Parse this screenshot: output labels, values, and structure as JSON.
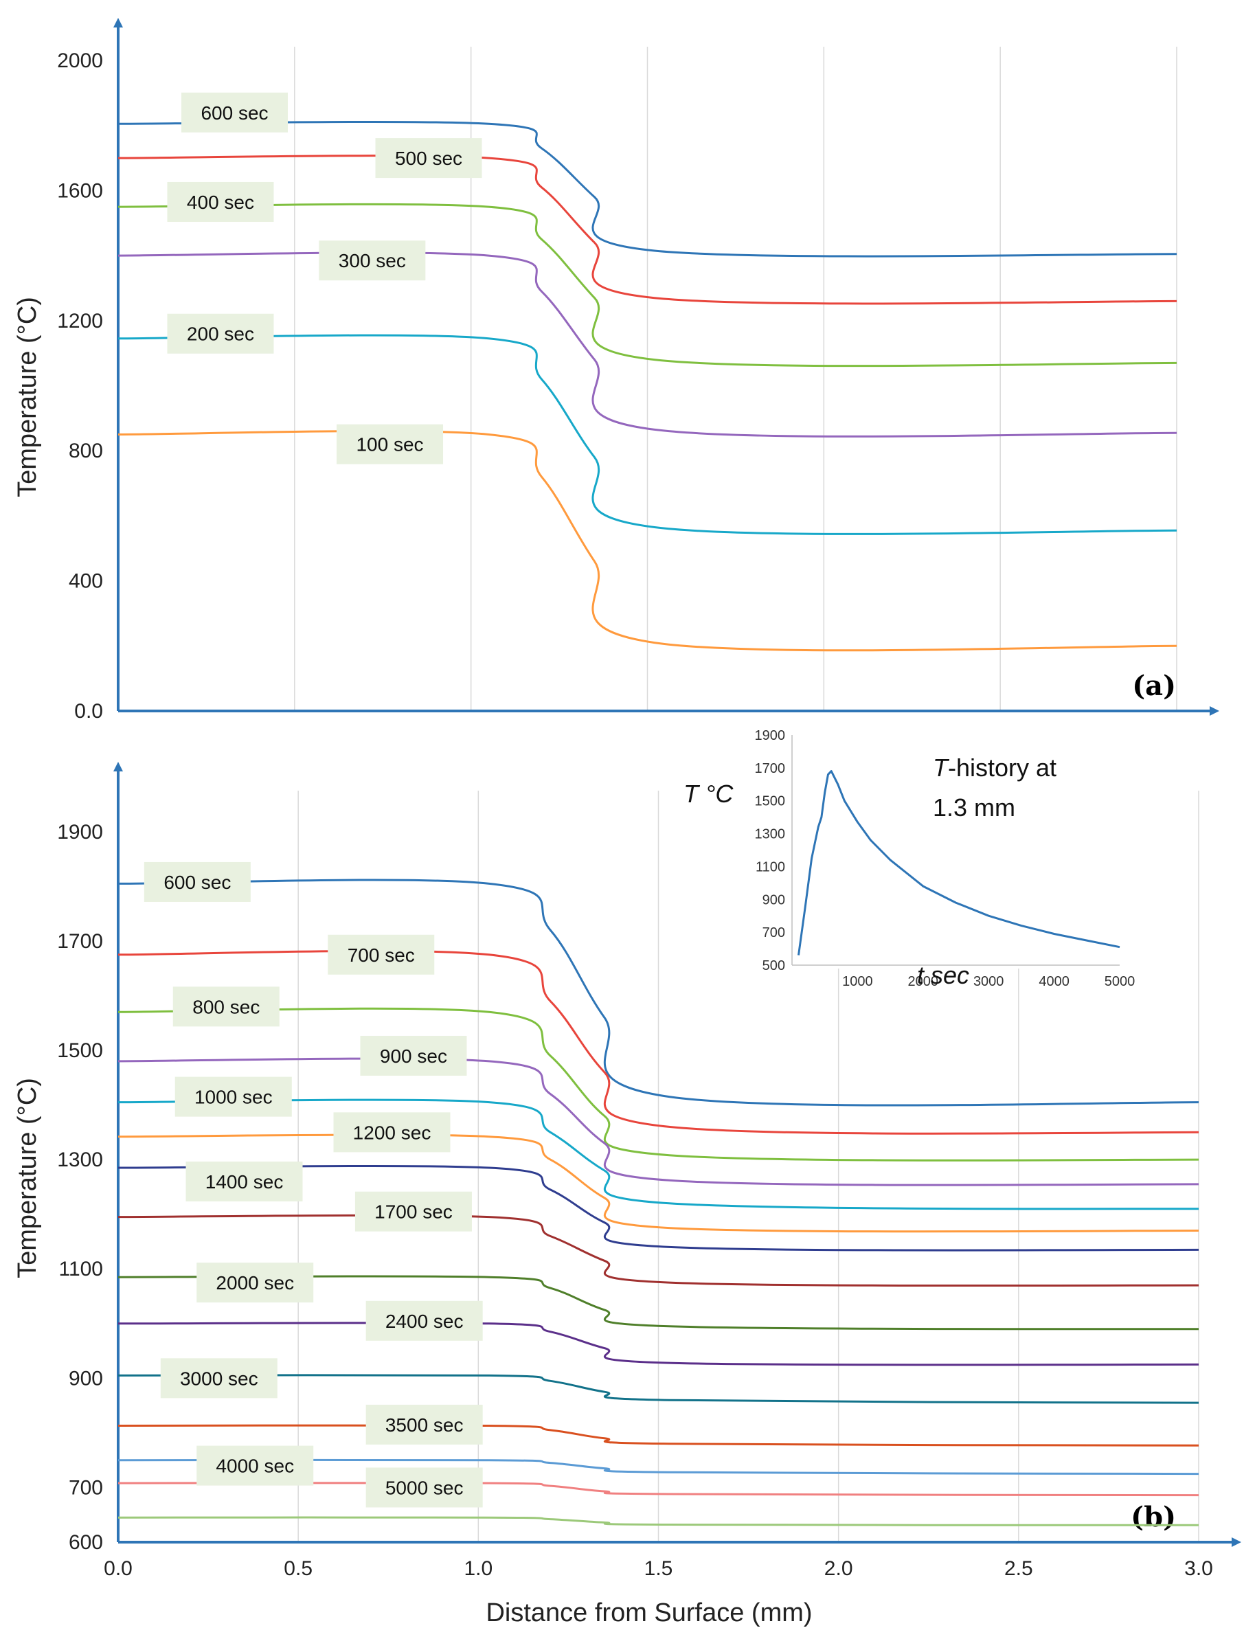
{
  "chart_data": [
    {
      "type": "line",
      "panel_label": "(a)",
      "ylabel": "Temperature (°C)",
      "xlabel": "",
      "xlim": [
        0,
        3.0
      ],
      "ylim": [
        0,
        2000
      ],
      "y_ticks": [
        "0.0",
        "400",
        "800",
        "1200",
        "1600",
        "2000"
      ],
      "y_tick_values": [
        0,
        400,
        800,
        1200,
        1600,
        2000
      ],
      "grid": "vertical",
      "series": [
        {
          "name": "600 sec",
          "color": "#2e75b6",
          "x": [
            0,
            1.05,
            1.2,
            1.35,
            1.52,
            3.0
          ],
          "y": [
            1805,
            1805,
            1730,
            1580,
            1415,
            1405
          ],
          "label_x": 0.33,
          "label_y": 1840
        },
        {
          "name": "500 sec",
          "color": "#e8453c",
          "x": [
            0,
            1.05,
            1.2,
            1.35,
            1.52,
            3.0
          ],
          "y": [
            1700,
            1700,
            1610,
            1440,
            1270,
            1260
          ],
          "label_x": 0.88,
          "label_y": 1700
        },
        {
          "name": "400 sec",
          "color": "#7fbf3f",
          "x": [
            0,
            1.05,
            1.2,
            1.35,
            1.52,
            3.0
          ],
          "y": [
            1550,
            1550,
            1450,
            1270,
            1080,
            1070
          ],
          "label_x": 0.29,
          "label_y": 1565
        },
        {
          "name": "300 sec",
          "color": "#9467bd",
          "x": [
            0,
            1.05,
            1.2,
            1.35,
            1.52,
            3.0
          ],
          "y": [
            1400,
            1400,
            1290,
            1080,
            865,
            855
          ],
          "label_x": 0.72,
          "label_y": 1385
        },
        {
          "name": "200 sec",
          "color": "#17a8c9",
          "x": [
            0,
            1.05,
            1.2,
            1.35,
            1.52,
            3.0
          ],
          "y": [
            1145,
            1145,
            1020,
            780,
            565,
            555
          ],
          "label_x": 0.29,
          "label_y": 1160
        },
        {
          "name": "100 sec",
          "color": "#ff9a3d",
          "x": [
            0,
            1.05,
            1.2,
            1.35,
            1.52,
            3.0
          ],
          "y": [
            850,
            850,
            720,
            460,
            210,
            200
          ],
          "label_x": 0.77,
          "label_y": 820
        }
      ]
    },
    {
      "type": "line",
      "panel_label": "(b)",
      "ylabel": "Temperature (°C)",
      "xlabel": "Distance from Surface (mm)",
      "xlim": [
        0,
        3.0
      ],
      "ylim": [
        600,
        1950
      ],
      "x_ticks": [
        "0.0",
        "0.5",
        "1.0",
        "1.5",
        "2.0",
        "2.5",
        "3.0"
      ],
      "x_tick_values": [
        0,
        0.5,
        1.0,
        1.5,
        2.0,
        2.5,
        3.0
      ],
      "y_ticks": [
        "600",
        "700",
        "900",
        "1100",
        "1300",
        "1500",
        "1700",
        "1900"
      ],
      "y_tick_values": [
        600,
        700,
        900,
        1100,
        1300,
        1500,
        1700,
        1900
      ],
      "grid": "vertical",
      "series": [
        {
          "name": "600 sec",
          "color": "#2e75b6",
          "x": [
            0,
            1.03,
            1.2,
            1.35,
            1.53,
            3.0
          ],
          "y": [
            1805,
            1805,
            1720,
            1560,
            1415,
            1405
          ],
          "label_x": 0.22,
          "label_y": 1808
        },
        {
          "name": "700 sec",
          "color": "#e8453c",
          "x": [
            0,
            1.03,
            1.2,
            1.35,
            1.53,
            3.0
          ],
          "y": [
            1675,
            1675,
            1590,
            1460,
            1360,
            1350
          ],
          "label_x": 0.73,
          "label_y": 1675
        },
        {
          "name": "800 sec",
          "color": "#7fbf3f",
          "x": [
            0,
            1.03,
            1.2,
            1.35,
            1.53,
            3.0
          ],
          "y": [
            1570,
            1570,
            1490,
            1380,
            1308,
            1300
          ],
          "label_x": 0.3,
          "label_y": 1580
        },
        {
          "name": "900 sec",
          "color": "#9467bd",
          "x": [
            0,
            1.03,
            1.2,
            1.35,
            1.53,
            3.0
          ],
          "y": [
            1480,
            1480,
            1420,
            1330,
            1262,
            1255
          ],
          "label_x": 0.82,
          "label_y": 1490
        },
        {
          "name": "1000 sec",
          "color": "#17a8c9",
          "x": [
            0,
            1.03,
            1.2,
            1.35,
            1.53,
            3.0
          ],
          "y": [
            1405,
            1405,
            1350,
            1280,
            1220,
            1210
          ],
          "label_x": 0.32,
          "label_y": 1415
        },
        {
          "name": "1200 sec",
          "color": "#ff9a3d",
          "x": [
            0,
            1.03,
            1.2,
            1.35,
            1.53,
            3.0
          ],
          "y": [
            1342,
            1342,
            1300,
            1230,
            1175,
            1170
          ],
          "label_x": 0.76,
          "label_y": 1350
        },
        {
          "name": "1400 sec",
          "color": "#2f3d8f",
          "x": [
            0,
            1.03,
            1.2,
            1.35,
            1.53,
            3.0
          ],
          "y": [
            1285,
            1285,
            1245,
            1185,
            1140,
            1135
          ],
          "label_x": 0.35,
          "label_y": 1260
        },
        {
          "name": "1700 sec",
          "color": "#a0302f",
          "x": [
            0,
            1.03,
            1.2,
            1.35,
            1.53,
            3.0
          ],
          "y": [
            1195,
            1195,
            1160,
            1115,
            1075,
            1070
          ],
          "label_x": 0.82,
          "label_y": 1205
        },
        {
          "name": "2000 sec",
          "color": "#4f7f2a",
          "x": [
            0,
            1.03,
            1.2,
            1.35,
            1.53,
            3.0
          ],
          "y": [
            1085,
            1085,
            1065,
            1025,
            995,
            990
          ],
          "label_x": 0.38,
          "label_y": 1075
        },
        {
          "name": "2400 sec",
          "color": "#5b2f8a",
          "x": [
            0,
            1.03,
            1.2,
            1.35,
            1.53,
            3.0
          ],
          "y": [
            1000,
            1000,
            985,
            955,
            928,
            925
          ],
          "label_x": 0.85,
          "label_y": 1005
        },
        {
          "name": "3000 sec",
          "color": "#12728a",
          "x": [
            0,
            1.03,
            1.2,
            1.35,
            1.53,
            3.0
          ],
          "y": [
            905,
            905,
            895,
            875,
            860,
            855
          ],
          "label_x": 0.28,
          "label_y": 900
        },
        {
          "name": "3500 sec",
          "color": "#d9501f",
          "x": [
            0,
            1.03,
            1.2,
            1.35,
            1.53,
            3.0
          ],
          "y": [
            813,
            813,
            805,
            790,
            780,
            777
          ],
          "label_x": 0.85,
          "label_y": 815
        },
        {
          "name": "4000 sec",
          "color": "#5b9bd5",
          "x": [
            0,
            1.03,
            1.2,
            1.35,
            1.53,
            3.0
          ],
          "y": [
            750,
            750,
            745,
            735,
            728,
            725
          ],
          "label_x": 0.38,
          "label_y": 740
        },
        {
          "name": "5000 sec",
          "color": "#f08080",
          "x": [
            0,
            1.03,
            1.2,
            1.35,
            1.53,
            3.0
          ],
          "y": [
            708,
            708,
            703,
            693,
            688,
            686
          ],
          "label_x": 0.85,
          "label_y": 700
        },
        {
          "name": "",
          "color": "#9cc97a",
          "x": [
            0,
            1.03,
            1.2,
            1.35,
            1.53,
            3.0
          ],
          "y": [
            645,
            645,
            642,
            636,
            632,
            631
          ],
          "label_x": null,
          "label_y": null
        }
      ]
    },
    {
      "type": "line",
      "role": "inset",
      "annotation_line1": "-history at",
      "annotation_italic": "T",
      "annotation_line2": "1.3 mm",
      "ylabel": "T °C",
      "xlabel": "t sec",
      "xlim": [
        0,
        5000
      ],
      "ylim": [
        500,
        1900
      ],
      "x_ticks": [
        "1000",
        "2000",
        "3000",
        "4000",
        "5000"
      ],
      "x_tick_values": [
        1000,
        2000,
        3000,
        4000,
        5000
      ],
      "y_ticks": [
        "500",
        "700",
        "900",
        "1100",
        "1300",
        "1500",
        "1700",
        "1900"
      ],
      "y_tick_values": [
        500,
        700,
        900,
        1100,
        1300,
        1500,
        1700,
        1900
      ],
      "series": [
        {
          "name": "",
          "color": "#2e75b6",
          "x": [
            100,
            200,
            300,
            400,
            450,
            500,
            550,
            600,
            700,
            800,
            1000,
            1200,
            1500,
            2000,
            2500,
            3000,
            3500,
            4000,
            4500,
            5000
          ],
          "y": [
            560,
            850,
            1150,
            1340,
            1400,
            1550,
            1660,
            1680,
            1600,
            1500,
            1370,
            1260,
            1140,
            980,
            880,
            800,
            740,
            690,
            650,
            610
          ]
        }
      ]
    }
  ]
}
